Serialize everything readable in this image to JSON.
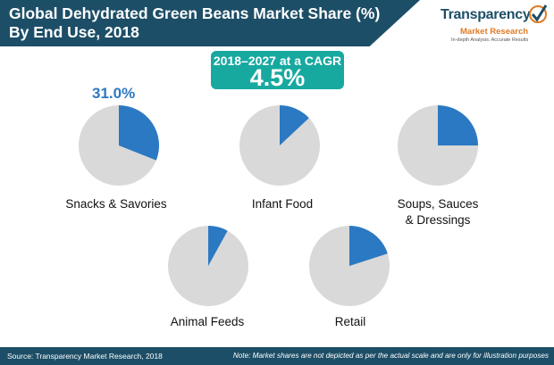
{
  "header": {
    "title_line1": "Global Dehydrated Green Beans Market Share (%)",
    "title_line2": "By End Use, 2018"
  },
  "logo": {
    "name": "Transparency",
    "sub": "Market Research",
    "tagline": "In-depth Analysis. Accurate Results"
  },
  "cagr": {
    "label": "2018–2027 at a CAGR",
    "value": "4.5%"
  },
  "callout": "31.0%",
  "colors": {
    "accent": "#2b79c2",
    "rest": "#d9d9d9",
    "header": "#1d4e67",
    "cagr": "#17a9a0"
  },
  "chart_data": {
    "type": "pie",
    "title": "Global Dehydrated Green Beans Market Share (%) By End Use, 2018",
    "slices": [
      {
        "label_line1": "Snacks & Savories",
        "label_line2": "",
        "value": 31.0
      },
      {
        "label_line1": "Infant Food",
        "label_line2": "",
        "value": 13
      },
      {
        "label_line1": "Soups, Sauces",
        "label_line2": "& Dressings",
        "value": 25
      },
      {
        "label_line1": "Animal Feeds",
        "label_line2": "",
        "value": 8
      },
      {
        "label_line1": "Retail",
        "label_line2": "",
        "value": 20
      }
    ]
  },
  "footer": {
    "source": "Source: Transparency Market Research, 2018",
    "note": "Note: Market shares are not depicted as per the actual scale and are only for illustration purposes"
  }
}
